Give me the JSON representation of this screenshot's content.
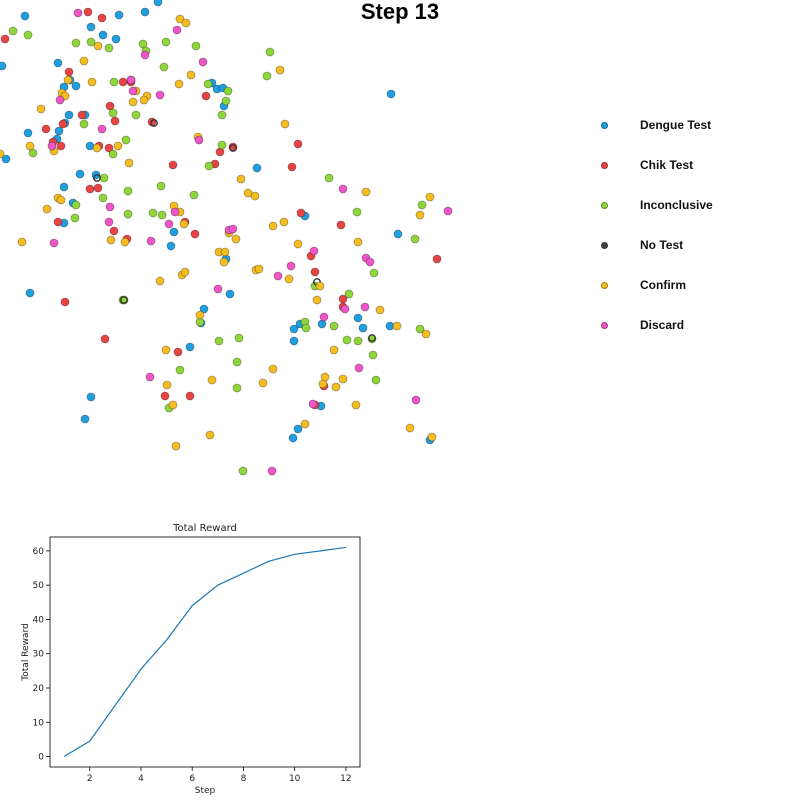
{
  "chart_data": [
    {
      "type": "scatter",
      "title": "Step 13",
      "axes_visible": false,
      "legend_position": "right",
      "series": [
        {
          "name": "Dengue Test",
          "color": "#1f9fe0",
          "points": [
            [
              25,
              16
            ],
            [
              2,
              66
            ],
            [
              145,
              12
            ],
            [
              119,
              15
            ],
            [
              158,
              2
            ],
            [
              91,
              27
            ],
            [
              103,
              35
            ],
            [
              116,
              39
            ],
            [
              58,
              63
            ],
            [
              70,
              80
            ],
            [
              64,
              87
            ],
            [
              76,
              86
            ],
            [
              69,
              115
            ],
            [
              85,
              115
            ],
            [
              65,
              123
            ],
            [
              59,
              131
            ],
            [
              57,
              139
            ],
            [
              28,
              133
            ],
            [
              6,
              159
            ],
            [
              80,
              174
            ],
            [
              90,
              146
            ],
            [
              96,
              175
            ],
            [
              64,
              187
            ],
            [
              73,
              203
            ],
            [
              64,
              223
            ],
            [
              174,
              232
            ],
            [
              171,
              246
            ],
            [
              212,
              83
            ],
            [
              217,
              89
            ],
            [
              224,
              106
            ],
            [
              305,
              216
            ],
            [
              257,
              168
            ],
            [
              226,
              259
            ],
            [
              230,
              294
            ],
            [
              204,
              309
            ],
            [
              190,
              347
            ],
            [
              201,
              323
            ],
            [
              294,
              329
            ],
            [
              294,
              341
            ],
            [
              300,
              324
            ],
            [
              322,
              324
            ],
            [
              358,
              318
            ],
            [
              363,
              328
            ],
            [
              390,
              326
            ],
            [
              398,
              234
            ],
            [
              391,
              94
            ],
            [
              321,
              406
            ],
            [
              298,
              429
            ],
            [
              293,
              438
            ],
            [
              430,
              440
            ],
            [
              91,
              397
            ],
            [
              85,
              419
            ],
            [
              30,
              293
            ],
            [
              223,
              88
            ]
          ]
        },
        {
          "name": "Chik Test",
          "color": "#e84444",
          "points": [
            [
              5,
              39
            ],
            [
              102,
              18
            ],
            [
              88,
              12
            ],
            [
              69,
              72
            ],
            [
              46,
              129
            ],
            [
              53,
              142
            ],
            [
              61,
              146
            ],
            [
              63,
              124
            ],
            [
              82,
              115
            ],
            [
              99,
              146
            ],
            [
              98,
              188
            ],
            [
              90,
              189
            ],
            [
              109,
              148
            ],
            [
              115,
              121
            ],
            [
              110,
              106
            ],
            [
              123,
              82
            ],
            [
              131,
              82
            ],
            [
              152,
              122
            ],
            [
              206,
              96
            ],
            [
              173,
              165
            ],
            [
              215,
              164
            ],
            [
              220,
              152
            ],
            [
              233,
              147
            ],
            [
              298,
              144
            ],
            [
              292,
              167
            ],
            [
              114,
              231
            ],
            [
              127,
              239
            ],
            [
              185,
              222
            ],
            [
              195,
              234
            ],
            [
              301,
              213
            ],
            [
              341,
              225
            ],
            [
              311,
              256
            ],
            [
              315,
              272
            ],
            [
              343,
              299
            ],
            [
              343,
              307
            ],
            [
              105,
              339
            ],
            [
              65,
              302
            ],
            [
              178,
              352
            ],
            [
              165,
              396
            ],
            [
              190,
              396
            ],
            [
              315,
              405
            ],
            [
              437,
              259
            ],
            [
              324,
              386
            ],
            [
              58,
              222
            ]
          ]
        },
        {
          "name": "Inconclusive",
          "color": "#8fd63a",
          "points": [
            [
              13,
              31
            ],
            [
              28,
              35
            ],
            [
              76,
              43
            ],
            [
              91,
              42
            ],
            [
              109,
              48
            ],
            [
              143,
              44
            ],
            [
              146,
              51
            ],
            [
              166,
              42
            ],
            [
              196,
              46
            ],
            [
              164,
              67
            ],
            [
              208,
              84
            ],
            [
              228,
              91
            ],
            [
              226,
              101
            ],
            [
              222,
              115
            ],
            [
              114,
              82
            ],
            [
              131,
              80
            ],
            [
              136,
              115
            ],
            [
              126,
              140
            ],
            [
              113,
              154
            ],
            [
              33,
              153
            ],
            [
              84,
              124
            ],
            [
              104,
              178
            ],
            [
              103,
              198
            ],
            [
              128,
              191
            ],
            [
              161,
              186
            ],
            [
              162,
              215
            ],
            [
              153,
              213
            ],
            [
              128,
              214
            ],
            [
              194,
              195
            ],
            [
              209,
              166
            ],
            [
              222,
              145
            ],
            [
              123,
              300
            ],
            [
              75,
              218
            ],
            [
              76,
              205
            ],
            [
              315,
              286
            ],
            [
              305,
              322
            ],
            [
              349,
              294
            ],
            [
              306,
              328
            ],
            [
              334,
              326
            ],
            [
              347,
              340
            ],
            [
              358,
              341
            ],
            [
              374,
              273
            ],
            [
              373,
              355
            ],
            [
              415,
              239
            ],
            [
              422,
              205
            ],
            [
              329,
              178
            ],
            [
              420,
              329
            ],
            [
              267,
              76
            ],
            [
              270,
              52
            ],
            [
              113,
              113
            ],
            [
              124,
              300
            ],
            [
              200,
              322
            ],
            [
              219,
              341
            ],
            [
              239,
              338
            ],
            [
              237,
              362
            ],
            [
              237,
              388
            ],
            [
              180,
              370
            ],
            [
              169,
              408
            ],
            [
              243,
              471
            ],
            [
              372,
              339
            ],
            [
              376,
              380
            ],
            [
              357,
              212
            ]
          ]
        },
        {
          "name": "No Test",
          "color": "#333333",
          "points": [
            [
              124,
              300
            ],
            [
              372,
              338
            ],
            [
              154,
              123
            ],
            [
              233,
              148
            ],
            [
              97,
              178
            ],
            [
              317,
              282
            ]
          ]
        },
        {
          "name": "Confirm",
          "color": "#f6bd20",
          "points": [
            [
              180,
              19
            ],
            [
              186,
              23
            ],
            [
              98,
              46
            ],
            [
              84,
              61
            ],
            [
              68,
              80
            ],
            [
              41,
              109
            ],
            [
              62,
              93
            ],
            [
              65,
              96
            ],
            [
              92,
              82
            ],
            [
              136,
              91
            ],
            [
              133,
              102
            ],
            [
              147,
              96
            ],
            [
              179,
              84
            ],
            [
              191,
              75
            ],
            [
              198,
              137
            ],
            [
              118,
              146
            ],
            [
              97,
              148
            ],
            [
              30,
              146
            ],
            [
              58,
              198
            ],
            [
              47,
              209
            ],
            [
              61,
              200
            ],
            [
              22,
              242
            ],
            [
              0,
              154
            ],
            [
              54,
              151
            ],
            [
              129,
              163
            ],
            [
              144,
              100
            ],
            [
              174,
              206
            ],
            [
              180,
              212
            ],
            [
              184,
              224
            ],
            [
              219,
              252
            ],
            [
              229,
              233
            ],
            [
              236,
              239
            ],
            [
              241,
              179
            ],
            [
              255,
              196
            ],
            [
              248,
              193
            ],
            [
              285,
              124
            ],
            [
              289,
              279
            ],
            [
              225,
              252
            ],
            [
              224,
              262
            ],
            [
              256,
              270
            ],
            [
              259,
              269
            ],
            [
              273,
              226
            ],
            [
              298,
              244
            ],
            [
              284,
              222
            ],
            [
              320,
              286
            ],
            [
              317,
              300
            ],
            [
              366,
              192
            ],
            [
              358,
              242
            ],
            [
              380,
              310
            ],
            [
              397,
              326
            ],
            [
              420,
              215
            ],
            [
              430,
              197
            ],
            [
              343,
              379
            ],
            [
              334,
              350
            ],
            [
              325,
              377
            ],
            [
              323,
              384
            ],
            [
              305,
              424
            ],
            [
              356,
              405
            ],
            [
              263,
              383
            ],
            [
              212,
              380
            ],
            [
              210,
              435
            ],
            [
              176,
              446
            ],
            [
              173,
              405
            ],
            [
              167,
              385
            ],
            [
              182,
              275
            ],
            [
              200,
              315
            ],
            [
              185,
              272
            ],
            [
              160,
              281
            ],
            [
              125,
              242
            ],
            [
              111,
              240
            ],
            [
              166,
              350
            ],
            [
              273,
              369
            ],
            [
              336,
              387
            ],
            [
              432,
              437
            ],
            [
              410,
              428
            ],
            [
              426,
              334
            ],
            [
              280,
              70
            ]
          ]
        },
        {
          "name": "Discard",
          "color": "#ee55c8",
          "points": [
            [
              78,
              13
            ],
            [
              145,
              55
            ],
            [
              203,
              62
            ],
            [
              177,
              30
            ],
            [
              160,
              95
            ],
            [
              133,
              91
            ],
            [
              60,
              100
            ],
            [
              52,
              146
            ],
            [
              109,
              222
            ],
            [
              110,
              207
            ],
            [
              151,
              241
            ],
            [
              169,
              224
            ],
            [
              199,
              140
            ],
            [
              229,
              230
            ],
            [
              175,
              212
            ],
            [
              233,
              229
            ],
            [
              218,
              289
            ],
            [
              278,
              276
            ],
            [
              291,
              266
            ],
            [
              314,
              251
            ],
            [
              343,
              189
            ],
            [
              366,
              258
            ],
            [
              370,
              262
            ],
            [
              345,
              309
            ],
            [
              365,
              307
            ],
            [
              324,
              317
            ],
            [
              313,
              404
            ],
            [
              359,
              368
            ],
            [
              150,
              377
            ],
            [
              272,
              471
            ],
            [
              416,
              400
            ],
            [
              448,
              211
            ],
            [
              102,
              129
            ],
            [
              54,
              243
            ],
            [
              131,
              80
            ]
          ]
        }
      ]
    },
    {
      "type": "line",
      "title": "Total Reward",
      "xlabel": "Step",
      "ylabel": "Total Reward",
      "x": [
        1,
        2,
        3,
        4,
        5,
        6,
        7,
        8,
        9,
        10,
        11,
        12
      ],
      "series": [
        {
          "values": [
            0,
            4.5,
            15,
            25.5,
            34,
            44,
            50,
            53.5,
            57,
            59,
            60,
            61
          ],
          "color": "#1f77b4"
        }
      ],
      "xticks": [
        2,
        4,
        6,
        8,
        10,
        12
      ],
      "yticks": [
        0,
        10,
        20,
        30,
        40,
        50,
        60
      ],
      "xlim": [
        0.45,
        12.55
      ],
      "ylim": [
        -3.05,
        64.05
      ]
    }
  ]
}
